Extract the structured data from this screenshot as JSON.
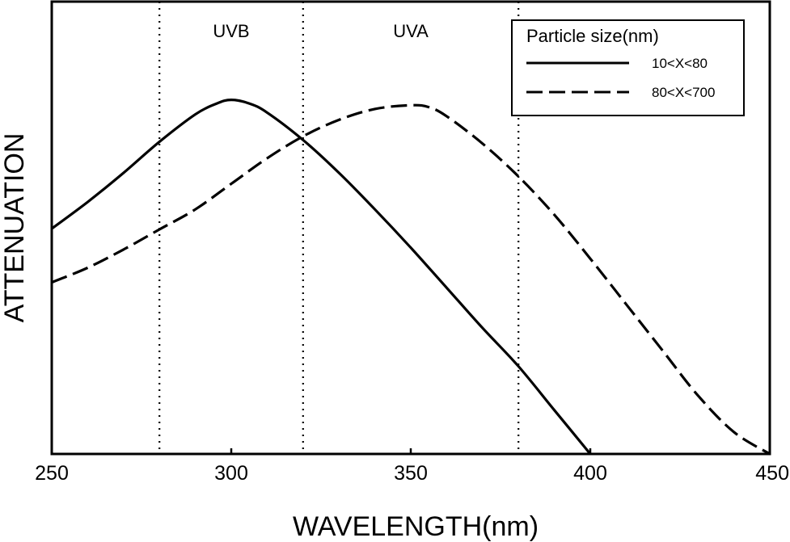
{
  "chart_data": {
    "type": "line",
    "title": "",
    "xlabel": "WAVELENGTH(nm)",
    "ylabel": "ATTENUATION",
    "xlim": [
      250,
      450
    ],
    "ylim": [
      0,
      1
    ],
    "xticks": [
      250,
      300,
      350,
      400,
      450
    ],
    "xtick_labels": [
      "250",
      "300",
      "350",
      "400",
      "450"
    ],
    "y_tick_labels_shown": false,
    "grid": false,
    "legend": {
      "position": "top-right",
      "title": "Particle size(nm)"
    },
    "vertical_lines": [
      {
        "x": 280,
        "style": "dotted"
      },
      {
        "x": 320,
        "style": "dotted"
      },
      {
        "x": 380,
        "style": "dotted"
      }
    ],
    "region_labels": [
      {
        "text": "UVB",
        "x": 300
      },
      {
        "text": "UVA",
        "x": 350
      }
    ],
    "series": [
      {
        "name": "10<X<80",
        "style": "solid",
        "points": [
          [
            250,
            0.617
          ],
          [
            260,
            0.69
          ],
          [
            270,
            0.77
          ],
          [
            280,
            0.855
          ],
          [
            290,
            0.93
          ],
          [
            296,
            0.96
          ],
          [
            300,
            0.97
          ],
          [
            305,
            0.96
          ],
          [
            310,
            0.935
          ],
          [
            320,
            0.86
          ],
          [
            330,
            0.77
          ],
          [
            340,
            0.67
          ],
          [
            350,
            0.565
          ],
          [
            360,
            0.455
          ],
          [
            370,
            0.345
          ],
          [
            380,
            0.24
          ],
          [
            390,
            0.12
          ],
          [
            400,
            0.0
          ]
        ]
      },
      {
        "name": "80<X<700",
        "style": "dashed",
        "points": [
          [
            250,
            0.47
          ],
          [
            260,
            0.51
          ],
          [
            270,
            0.56
          ],
          [
            280,
            0.615
          ],
          [
            290,
            0.67
          ],
          [
            300,
            0.74
          ],
          [
            310,
            0.81
          ],
          [
            320,
            0.87
          ],
          [
            330,
            0.915
          ],
          [
            340,
            0.945
          ],
          [
            350,
            0.955
          ],
          [
            355,
            0.95
          ],
          [
            360,
            0.925
          ],
          [
            370,
            0.85
          ],
          [
            380,
            0.76
          ],
          [
            390,
            0.655
          ],
          [
            400,
            0.535
          ],
          [
            410,
            0.41
          ],
          [
            420,
            0.285
          ],
          [
            430,
            0.16
          ],
          [
            440,
            0.06
          ],
          [
            450,
            0.0
          ]
        ]
      }
    ]
  }
}
